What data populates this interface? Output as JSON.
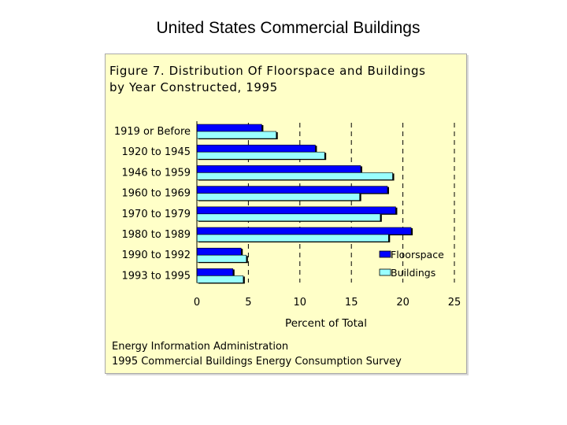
{
  "page": {
    "title": "United States Commercial Buildings"
  },
  "chart_data": {
    "type": "bar",
    "orientation": "horizontal",
    "title": "Figure 7. Distribution Of Floorspace and Buildings by Year Constructed, 1995",
    "title_lines": [
      "Figure 7. Distribution Of Floorspace and Buildings",
      "by Year Constructed, 1995"
    ],
    "categories": [
      "1919 or Before",
      "1920 to 1945",
      "1946 to 1959",
      "1960 to 1969",
      "1970 to 1979",
      "1980 to 1989",
      "1990 to 1992",
      "1993 to 1995"
    ],
    "series": [
      {
        "name": "Floorspace",
        "color": "#0000ff",
        "values": [
          6.3,
          11.5,
          15.9,
          18.5,
          19.3,
          20.8,
          4.3,
          3.5
        ]
      },
      {
        "name": "Buildings",
        "color": "#99ffff",
        "values": [
          7.7,
          12.4,
          19.0,
          15.8,
          17.8,
          18.6,
          4.8,
          4.5
        ]
      }
    ],
    "xlabel": "Percent of Total",
    "ylabel": "",
    "xlim": [
      0,
      25
    ],
    "xticks": [
      0,
      5,
      10,
      15,
      20,
      25
    ],
    "grid": "vertical dashed",
    "legend_position": "bottom-right",
    "panel_background": "#ffffc8",
    "source_lines": [
      "Energy Information Administration",
      "1995 Commercial Buildings Energy Consumption Survey"
    ]
  }
}
